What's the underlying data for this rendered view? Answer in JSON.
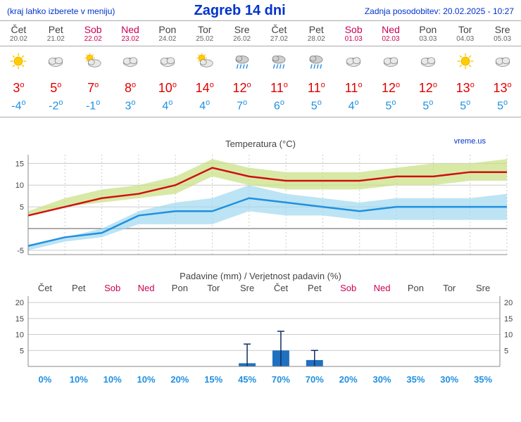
{
  "header": {
    "menu_note": "(kraj lahko izberete v meniju)",
    "title": "Zagreb 14 dni",
    "updated": "Zadnja posodobitev: 20.02.2025 - 10:27"
  },
  "days": [
    {
      "name": "Čet",
      "date": "20.02",
      "weekend": false,
      "icon": "sun",
      "high": "3",
      "low": "-4"
    },
    {
      "name": "Pet",
      "date": "21.02",
      "weekend": false,
      "icon": "cloud",
      "high": "5",
      "low": "-2"
    },
    {
      "name": "Sob",
      "date": "22.02",
      "weekend": true,
      "icon": "partly",
      "high": "7",
      "low": "-1"
    },
    {
      "name": "Ned",
      "date": "23.02",
      "weekend": true,
      "icon": "cloud",
      "high": "8",
      "low": "3"
    },
    {
      "name": "Pon",
      "date": "24.02",
      "weekend": false,
      "icon": "cloud",
      "high": "10",
      "low": "4"
    },
    {
      "name": "Tor",
      "date": "25.02",
      "weekend": false,
      "icon": "partly",
      "high": "14",
      "low": "4"
    },
    {
      "name": "Sre",
      "date": "26.02",
      "weekend": false,
      "icon": "rain",
      "high": "12",
      "low": "7"
    },
    {
      "name": "Čet",
      "date": "27.02",
      "weekend": false,
      "icon": "rain",
      "high": "11",
      "low": "6"
    },
    {
      "name": "Pet",
      "date": "28.02",
      "weekend": false,
      "icon": "rain",
      "high": "11",
      "low": "5"
    },
    {
      "name": "Sob",
      "date": "01.03",
      "weekend": true,
      "icon": "cloud",
      "high": "11",
      "low": "4"
    },
    {
      "name": "Ned",
      "date": "02.03",
      "weekend": true,
      "icon": "cloud",
      "high": "12",
      "low": "5"
    },
    {
      "name": "Pon",
      "date": "03.03",
      "weekend": false,
      "icon": "cloud",
      "high": "12",
      "low": "5"
    },
    {
      "name": "Tor",
      "date": "04.03",
      "weekend": false,
      "icon": "sun",
      "high": "13",
      "low": "5"
    },
    {
      "name": "Sre",
      "date": "05.03",
      "weekend": false,
      "icon": "cloud",
      "high": "13",
      "low": "5"
    }
  ],
  "temp_chart": {
    "title": "Temperatura (°C)",
    "watermark": "vreme.us",
    "y_ticks": [
      -5,
      0,
      5,
      10,
      15
    ],
    "x_count": 14,
    "high_band_top": [
      4,
      7,
      9,
      10,
      12,
      16,
      14,
      13,
      13,
      13,
      14,
      15,
      15,
      16
    ],
    "high_line": [
      3,
      5,
      7,
      8,
      10,
      14,
      12,
      11,
      11,
      11,
      12,
      12,
      13,
      13
    ],
    "high_band_bot": [
      3,
      5,
      6,
      7,
      8,
      12,
      10,
      9,
      9,
      9,
      10,
      10,
      11,
      11
    ],
    "low_band_top": [
      -4,
      -2,
      0,
      4,
      6,
      7,
      10,
      8,
      7,
      6,
      7,
      7,
      7,
      8
    ],
    "low_line": [
      -4,
      -2,
      -1,
      3,
      4,
      4,
      7,
      6,
      5,
      4,
      5,
      5,
      5,
      5
    ],
    "low_band_bot": [
      -5,
      -3,
      -2,
      1,
      1,
      1,
      4,
      3,
      3,
      2,
      2,
      2,
      2,
      2
    ],
    "colors": {
      "high_line": "#d01010",
      "high_band": "#c8e080",
      "low_line": "#2090e0",
      "low_band": "#a0d8f0",
      "grid": "#cccccc",
      "zero": "#888888",
      "axis_text": "#444"
    },
    "line_width": 2.5
  },
  "precip": {
    "title": "Padavine (mm) / Verjetnost padavin (%)",
    "y_ticks": [
      0,
      5,
      10,
      15,
      20
    ],
    "days": [
      "Čet",
      "Pet",
      "Sob",
      "Ned",
      "Pon",
      "Tor",
      "Sre",
      "Čet",
      "Pet",
      "Sob",
      "Ned",
      "Pon",
      "Tor",
      "Sre"
    ],
    "weekend_idx": [
      2,
      3,
      9,
      10
    ],
    "bars": [
      0,
      0,
      0,
      0,
      0,
      0,
      1,
      5,
      2,
      0,
      0,
      0,
      0,
      0
    ],
    "whisker": [
      0,
      0,
      0,
      0,
      0,
      0,
      7,
      11,
      5,
      0,
      0,
      0,
      0,
      0
    ],
    "prob": [
      "0%",
      "10%",
      "10%",
      "10%",
      "20%",
      "15%",
      "45%",
      "70%",
      "70%",
      "20%",
      "30%",
      "35%",
      "30%",
      "35%"
    ],
    "colors": {
      "bar": "#2070c0",
      "grid": "#cccccc",
      "axis_text": "#444"
    }
  }
}
